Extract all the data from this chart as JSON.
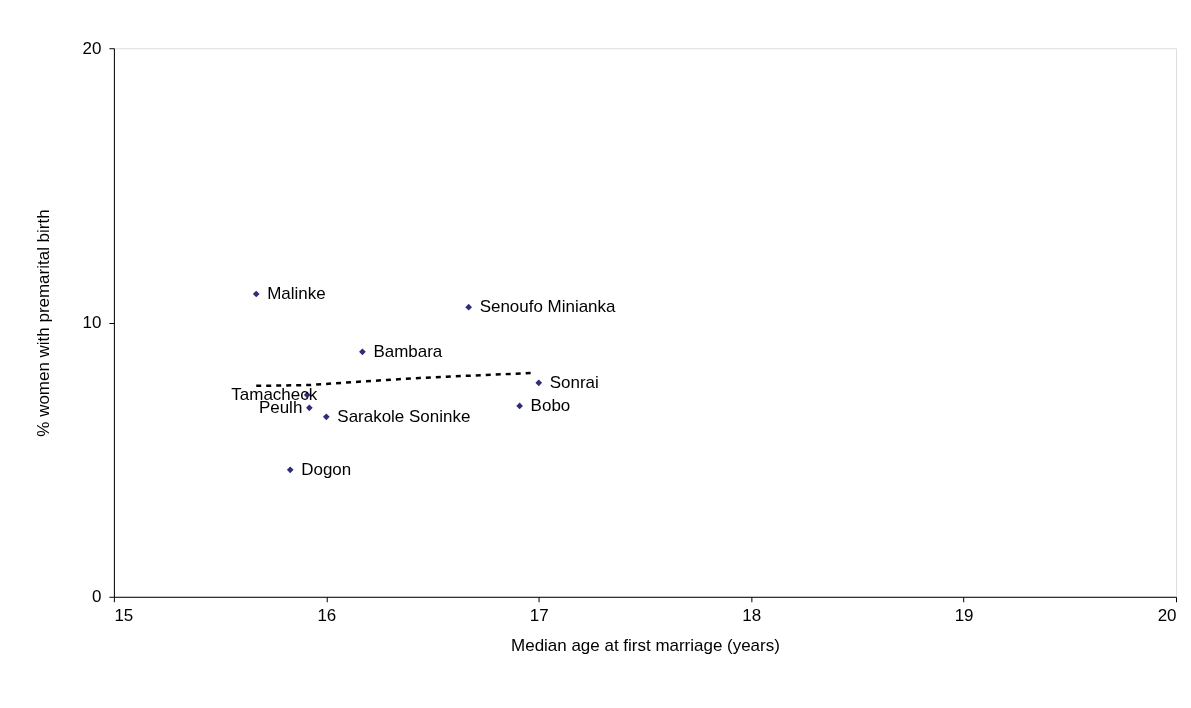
{
  "chart_data": {
    "type": "scatter",
    "xlabel": "Median age at first marriage (years)",
    "ylabel": "% women with premarital birth",
    "xlim": [
      15,
      20
    ],
    "xticks": [
      15,
      16,
      17,
      18,
      19,
      20
    ],
    "ylim": [
      0,
      20
    ],
    "yticks": [
      0,
      10,
      20
    ],
    "grid": false,
    "marker": "diamond",
    "series": [
      {
        "color": "#2e2e78",
        "x": [
          15.67,
          16.67,
          16.17,
          15.91,
          15.92,
          17.0,
          16.91,
          16.0,
          15.83
        ],
        "values": [
          11.04,
          10.56,
          8.93,
          7.36,
          6.89,
          7.8,
          6.96,
          6.56,
          4.63
        ]
      },
      {
        "type": "line",
        "color": "#000000",
        "line_style": "dashed",
        "marker": "none",
        "x": [
          15.67,
          15.92,
          16.17,
          16.44,
          16.67,
          16.97
        ],
        "values": [
          7.69,
          7.72,
          7.85,
          7.98,
          8.06,
          8.16
        ]
      }
    ],
    "annotations": [
      {
        "text": "Malinke",
        "x": 15.67,
        "y": 11.04
      },
      {
        "text": "Senoufo Minianka",
        "x": 16.67,
        "y": 10.56
      },
      {
        "text": "Bambara",
        "x": 16.17,
        "y": 8.93
      },
      {
        "text": "Tamacheck",
        "x": 15.91,
        "y": 7.36
      },
      {
        "text": "Peulh",
        "x": 15.92,
        "y": 6.89
      },
      {
        "text": "Sonrai",
        "x": 17.0,
        "y": 7.8
      },
      {
        "text": "Bobo",
        "x": 16.91,
        "y": 6.96
      },
      {
        "text": "Sarakole Soninke",
        "x": 16.0,
        "y": 6.56
      },
      {
        "text": "Dogon",
        "x": 15.83,
        "y": 4.63
      }
    ]
  }
}
